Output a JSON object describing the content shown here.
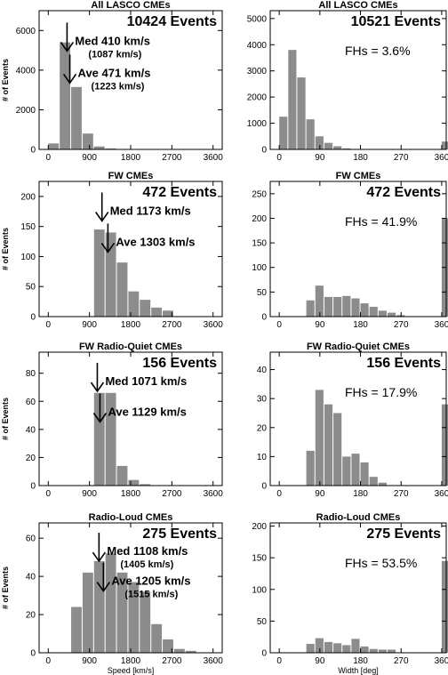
{
  "chart_data": [
    {
      "type": "bar",
      "title": "All LASCO CMEs",
      "xaxis": "speed",
      "xlim": [
        -200,
        3800
      ],
      "ylim": [
        0,
        7000
      ],
      "xticks": [
        "0",
        "900",
        "1800",
        "2700",
        "3600"
      ],
      "yticks": [
        "0",
        "2000",
        "4000",
        "6000"
      ],
      "ylabel": "# of Events",
      "xlabel": "",
      "bar_width": 250,
      "x": [
        0,
        250,
        500,
        750,
        1000,
        1250,
        1500
      ],
      "values": [
        300,
        5400,
        3150,
        800,
        150,
        50,
        20
      ],
      "events_label": "10424 Events",
      "annotations": [
        {
          "text": "Med  410 km/s",
          "sub": "(1087 km/s)",
          "x": 410
        },
        {
          "text": "Ave  471 km/s",
          "sub": "(1223 km/s)",
          "x": 471
        }
      ]
    },
    {
      "type": "bar",
      "title": "All LASCO CMEs",
      "xaxis": "width",
      "xlim": [
        -20,
        370
      ],
      "ylim": [
        0,
        5300
      ],
      "xticks": [
        "0",
        "90",
        "180",
        "270",
        "360"
      ],
      "yticks": [
        "0",
        "1000",
        "2000",
        "3000",
        "4000",
        "5000"
      ],
      "ylabel": "",
      "xlabel": "",
      "bar_width": 20,
      "x": [
        0,
        20,
        40,
        60,
        80,
        100,
        120,
        140,
        160,
        180,
        200,
        360
      ],
      "values": [
        1250,
        3800,
        2750,
        1150,
        500,
        250,
        120,
        40,
        15,
        10,
        5,
        300
      ],
      "events_label": "10521 Events",
      "fhs": "FHs =  3.6%"
    },
    {
      "type": "bar",
      "title": "FW CMEs",
      "xaxis": "speed",
      "xlim": [
        -200,
        3800
      ],
      "ylim": [
        0,
        225
      ],
      "xticks": [
        "0",
        "900",
        "1800",
        "2700",
        "3600"
      ],
      "yticks": [
        "0",
        "50",
        "100",
        "150",
        "200"
      ],
      "ylabel": "# of Events",
      "xlabel": "",
      "bar_width": 250,
      "x": [
        1000,
        1250,
        1500,
        1750,
        2000,
        2250,
        2500
      ],
      "values": [
        145,
        140,
        90,
        42,
        28,
        15,
        10
      ],
      "events_label": "472 Events",
      "annotations": [
        {
          "text": "Med 1173 km/s",
          "x": 1173
        },
        {
          "text": "Ave 1303 km/s",
          "x": 1303
        }
      ]
    },
    {
      "type": "bar",
      "title": "FW CMEs",
      "xaxis": "width",
      "xlim": [
        -20,
        370
      ],
      "ylim": [
        0,
        275
      ],
      "xticks": [
        "0",
        "90",
        "180",
        "270",
        "360"
      ],
      "yticks": [
        "0",
        "50",
        "100",
        "150",
        "200",
        "250"
      ],
      "ylabel": "",
      "xlabel": "",
      "bar_width": 20,
      "x": [
        60,
        80,
        100,
        120,
        140,
        160,
        180,
        200,
        220,
        240,
        260,
        360
      ],
      "values": [
        33,
        63,
        40,
        40,
        42,
        37,
        27,
        20,
        12,
        8,
        3,
        200
      ],
      "events_label": "472 Events",
      "fhs": "FHs = 41.9%"
    },
    {
      "type": "bar",
      "title": "FW Radio-Quiet CMEs",
      "xaxis": "speed",
      "xlim": [
        -200,
        3800
      ],
      "ylim": [
        0,
        95
      ],
      "xticks": [
        "0",
        "900",
        "1800",
        "2700",
        "3600"
      ],
      "yticks": [
        "0",
        "20",
        "40",
        "60",
        "80"
      ],
      "ylabel": "# of Events",
      "xlabel": "",
      "bar_width": 250,
      "x": [
        1000,
        1250,
        1500,
        1750,
        2000
      ],
      "values": [
        66,
        66,
        14,
        4,
        1
      ],
      "events_label": "156 Events",
      "annotations": [
        {
          "text": "Med 1071 km/s",
          "x": 1071
        },
        {
          "text": "Ave 1129 km/s",
          "x": 1129
        }
      ]
    },
    {
      "type": "bar",
      "title": "FW Radio-Quiet CMEs",
      "xaxis": "width",
      "xlim": [
        -20,
        370
      ],
      "ylim": [
        0,
        46
      ],
      "xticks": [
        "0",
        "90",
        "180",
        "270",
        "360"
      ],
      "yticks": [
        "0",
        "10",
        "20",
        "30",
        "40"
      ],
      "ylabel": "",
      "xlabel": "",
      "bar_width": 20,
      "x": [
        60,
        80,
        100,
        120,
        140,
        160,
        180,
        200,
        220,
        360
      ],
      "values": [
        12,
        33,
        28,
        25,
        10,
        11,
        8,
        3,
        1,
        28
      ],
      "events_label": "156 Events",
      "fhs": "FHs = 17.9%"
    },
    {
      "type": "bar",
      "title": "Radio-Loud CMEs",
      "xaxis": "speed",
      "xlim": [
        -200,
        3800
      ],
      "ylim": [
        0,
        68
      ],
      "xticks": [
        "0",
        "900",
        "1800",
        "2700",
        "3600"
      ],
      "yticks": [
        "0",
        "20",
        "40",
        "60"
      ],
      "ylabel": "# of Events",
      "xlabel": "Speed [km/s]",
      "bar_width": 250,
      "x": [
        500,
        750,
        1000,
        1250,
        1500,
        1750,
        2000,
        2250,
        2500,
        2750,
        3000
      ],
      "values": [
        24,
        42,
        48,
        52,
        42,
        37,
        32,
        15,
        7,
        2,
        1
      ],
      "events_label": "275 Events",
      "annotations": [
        {
          "text": "Med 1108 km/s",
          "sub": "(1405 km/s)",
          "x": 1108
        },
        {
          "text": "Ave 1205 km/s",
          "sub": "(1515 km/s)",
          "x": 1205
        }
      ]
    },
    {
      "type": "bar",
      "title": "Radio-Loud CMEs",
      "xaxis": "width",
      "xlim": [
        -20,
        370
      ],
      "ylim": [
        0,
        205
      ],
      "xticks": [
        "0",
        "90",
        "180",
        "270",
        "360"
      ],
      "yticks": [
        "0",
        "50",
        "100",
        "150",
        "200"
      ],
      "ylabel": "",
      "xlabel": "Width [deg]",
      "bar_width": 20,
      "x": [
        60,
        80,
        100,
        120,
        140,
        160,
        180,
        200,
        220,
        240,
        360
      ],
      "values": [
        14,
        23,
        17,
        15,
        12,
        22,
        10,
        6,
        5,
        5,
        145
      ],
      "events_label": "275 Events",
      "fhs": "FHs = 53.5%"
    }
  ]
}
